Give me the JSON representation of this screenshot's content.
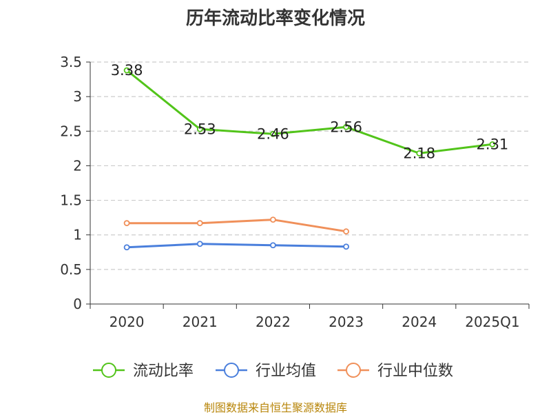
{
  "chart_data": {
    "type": "line",
    "title": "历年流动比率变化情况",
    "categories": [
      "2020",
      "2021",
      "2022",
      "2023",
      "2024",
      "2025Q1"
    ],
    "ylim": [
      0,
      3.5
    ],
    "yticks": [
      "0",
      "0.5",
      "1",
      "1.5",
      "2",
      "2.5",
      "3",
      "3.5"
    ],
    "series": [
      {
        "name": "流动比率",
        "color": "#52c41a",
        "values": [
          3.38,
          2.53,
          2.46,
          2.56,
          2.18,
          2.31
        ],
        "labels": [
          "3.38",
          "2.53",
          "2.46",
          "2.56",
          "2.18",
          "2.31"
        ]
      },
      {
        "name": "行业均值",
        "color": "#4a7fdc",
        "values": [
          0.82,
          0.87,
          0.85,
          0.83,
          null,
          null
        ]
      },
      {
        "name": "行业中位数",
        "color": "#f0905a",
        "values": [
          1.17,
          1.17,
          1.22,
          1.05,
          null,
          null
        ]
      }
    ],
    "grid": true,
    "legend_position": "bottom"
  },
  "footer": {
    "source": "制图数据来自恒生聚源数据库"
  }
}
